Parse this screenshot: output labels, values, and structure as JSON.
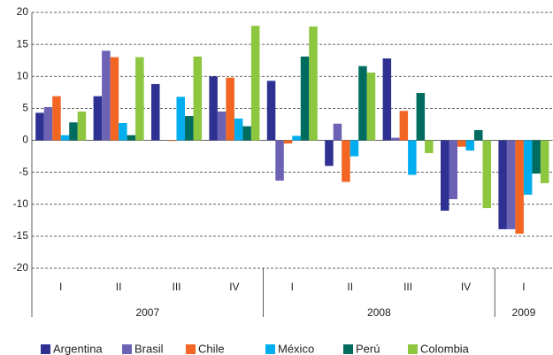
{
  "chart_data": {
    "type": "bar",
    "categories": [
      "I",
      "II",
      "III",
      "IV",
      "I",
      "II",
      "III",
      "IV",
      "I"
    ],
    "years": [
      "2007",
      "2007",
      "2007",
      "2007",
      "2008",
      "2008",
      "2008",
      "2008",
      "2009"
    ],
    "series": [
      {
        "name": "Argentina",
        "color": "#2e3192",
        "values": [
          4.3,
          6.9,
          8.8,
          10.0,
          9.3,
          -4.0,
          12.8,
          -11.0,
          -13.9
        ]
      },
      {
        "name": "Brasil",
        "color": "#6c63b5",
        "values": [
          5.2,
          14.0,
          0,
          4.5,
          -6.3,
          2.6,
          0.4,
          -9.2,
          -13.9
        ]
      },
      {
        "name": "Chile",
        "color": "#f26522",
        "values": [
          6.9,
          13.0,
          -0.1,
          9.8,
          -0.5,
          -6.5,
          4.6,
          -1.0,
          -14.6
        ]
      },
      {
        "name": "México",
        "color": "#00aeef",
        "values": [
          0.8,
          2.7,
          6.8,
          3.4,
          0.7,
          -2.5,
          -5.4,
          -1.6,
          -8.5
        ]
      },
      {
        "name": "Perú",
        "color": "#006b5f",
        "values": [
          2.8,
          0.8,
          3.8,
          2.2,
          13.1,
          11.6,
          7.4,
          1.6,
          -5.2
        ]
      },
      {
        "name": "Colombia",
        "color": "#8dc63f",
        "values": [
          4.5,
          13.0,
          13.1,
          17.9,
          17.8,
          10.6,
          -2.0,
          -10.6,
          -6.7
        ]
      }
    ],
    "ylim": [
      -20,
      20
    ],
    "yticks": [
      -20,
      -15,
      -10,
      -5,
      0,
      5,
      10,
      15,
      20
    ],
    "grid": true
  }
}
